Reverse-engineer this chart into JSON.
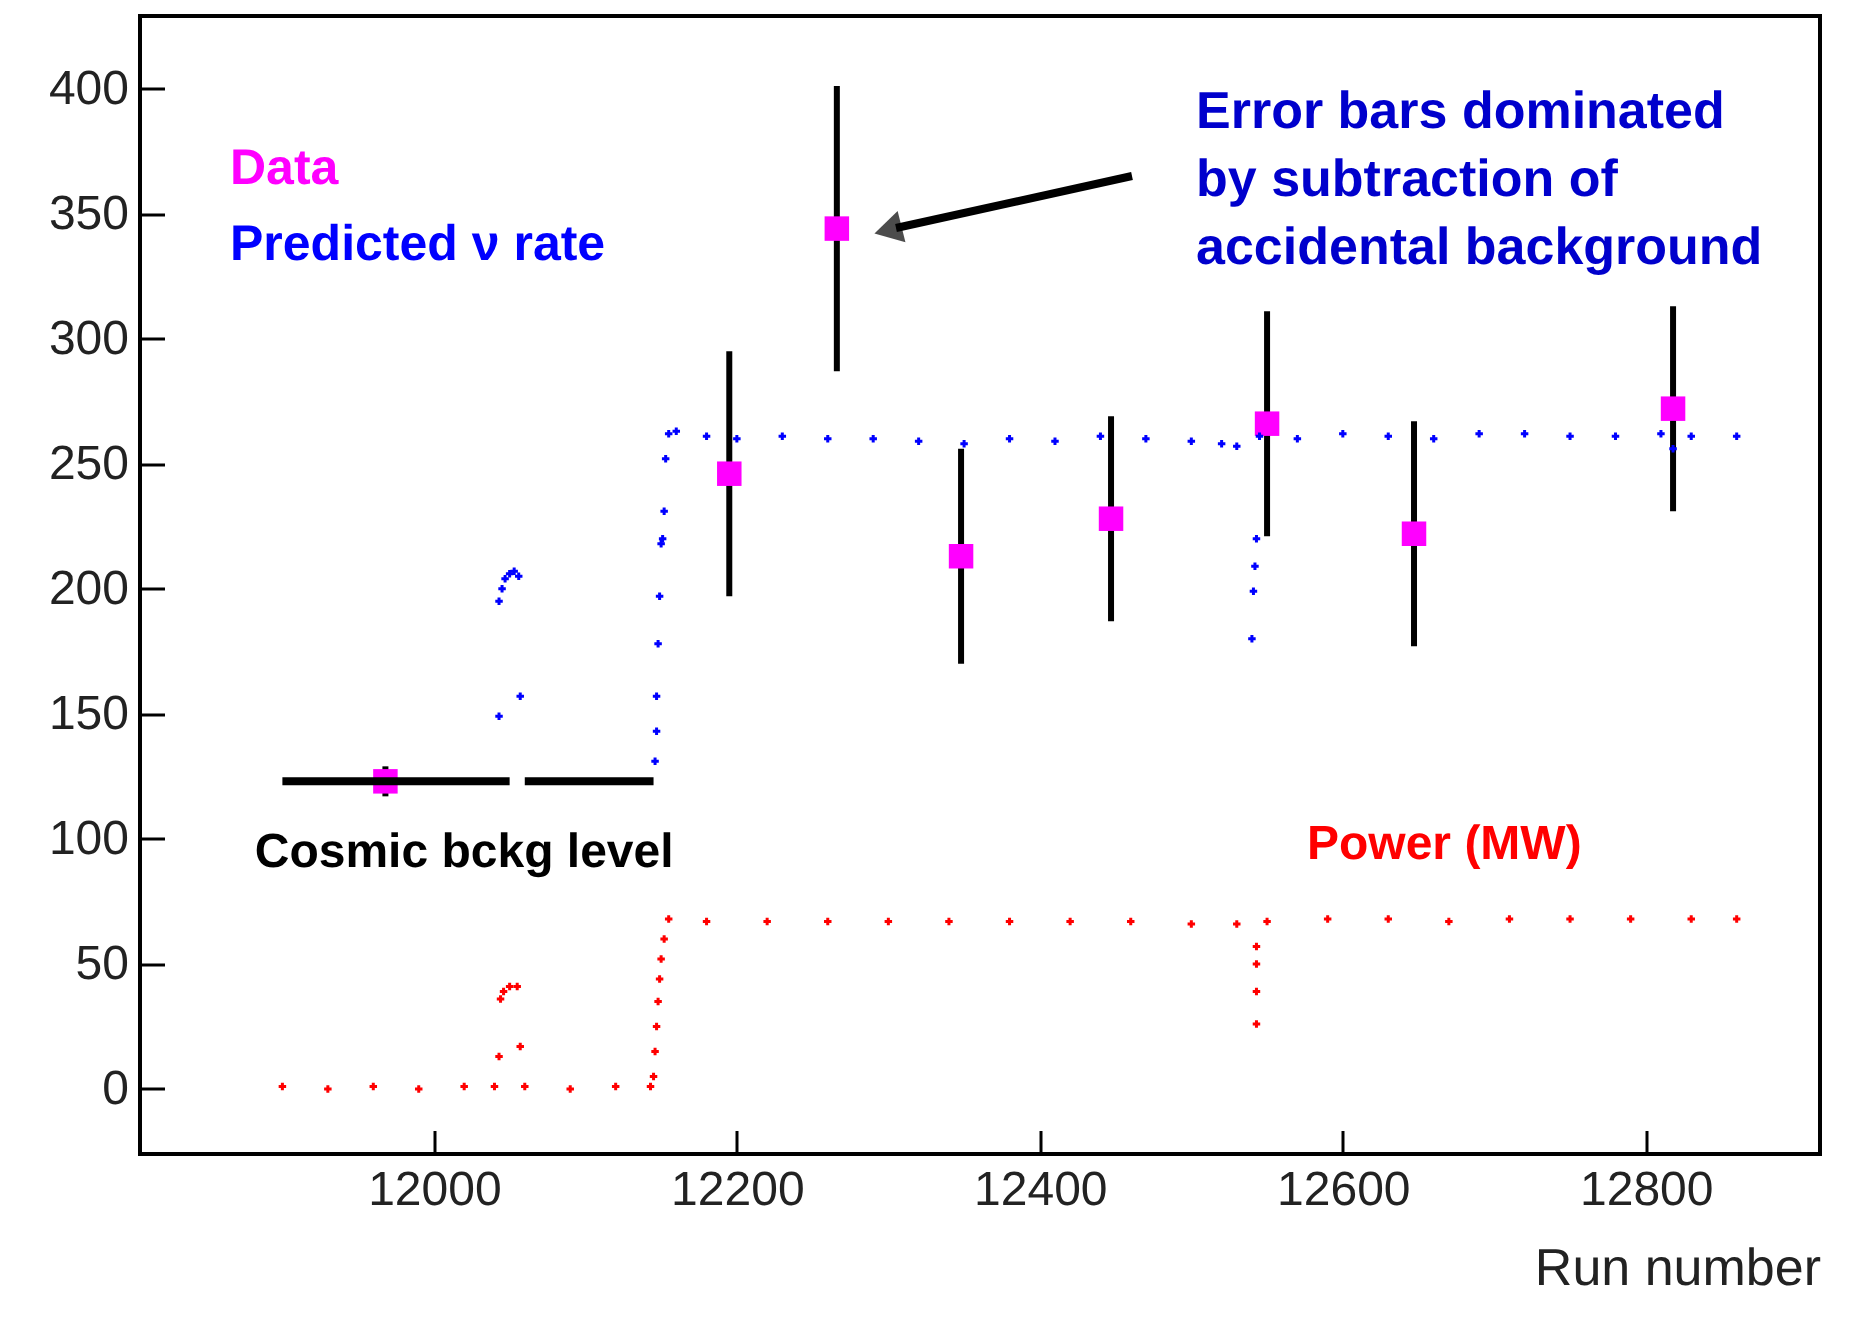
{
  "chart_data": {
    "type": "scatter",
    "xlabel": "Run number",
    "legend": "top left",
    "grid": false,
    "xlim": [
      11806,
      12915
    ],
    "ylim": [
      -26,
      429
    ],
    "xticks": [
      12000,
      12200,
      12400,
      12600,
      12800
    ],
    "yticks": [
      0,
      50,
      100,
      150,
      200,
      250,
      300,
      350,
      400
    ],
    "series": [
      {
        "name": "Data",
        "marker": "square",
        "color": "#ff00ff",
        "x": [
          11968,
          12195,
          12266,
          12348,
          12447,
          12550,
          12647,
          12818
        ],
        "values": [
          123,
          246,
          344,
          213,
          228,
          266,
          222,
          272
        ],
        "errors": [
          6,
          49,
          57,
          43,
          41,
          45,
          45,
          41
        ]
      },
      {
        "name": "Predicted ν rate",
        "marker": "cross",
        "color": "#0000ff",
        "x": [
          12043,
          12043,
          12045,
          12047,
          12050,
          12053,
          12056,
          12057,
          12146,
          12147,
          12147,
          12148,
          12149,
          12150,
          12151,
          12152,
          12153,
          12155,
          12160,
          12180,
          12200,
          12230,
          12260,
          12290,
          12320,
          12350,
          12380,
          12410,
          12440,
          12470,
          12500,
          12520,
          12530,
          12540,
          12541,
          12542,
          12543,
          12545,
          12570,
          12600,
          12630,
          12660,
          12690,
          12720,
          12750,
          12780,
          12810,
          12818,
          12830,
          12860
        ],
        "values": [
          149,
          195,
          200,
          204,
          206,
          207,
          205,
          157,
          131,
          143,
          157,
          178,
          197,
          218,
          220,
          231,
          252,
          262,
          263,
          261,
          260,
          261,
          260,
          260,
          259,
          258,
          260,
          259,
          261,
          260,
          259,
          258,
          257,
          180,
          199,
          209,
          220,
          261,
          260,
          262,
          261,
          260,
          262,
          262,
          261,
          261,
          262,
          256,
          261,
          261
        ]
      },
      {
        "marker": "cross",
        "color": "#ff0000",
        "x": [
          11900,
          11930,
          11960,
          11990,
          12020,
          12040,
          12043,
          12044,
          12046,
          12050,
          12055,
          12057,
          12060,
          12090,
          12120,
          12143,
          12145,
          12146,
          12147,
          12148,
          12149,
          12150,
          12152,
          12155,
          12180,
          12220,
          12260,
          12300,
          12340,
          12380,
          12420,
          12460,
          12500,
          12530,
          12543,
          12543,
          12543,
          12543,
          12550,
          12590,
          12630,
          12670,
          12710,
          12750,
          12790,
          12830,
          12860
        ],
        "values": [
          1,
          0,
          1,
          0,
          1,
          1,
          13,
          36,
          39,
          41,
          41,
          17,
          1,
          0,
          1,
          1,
          5,
          15,
          25,
          35,
          44,
          52,
          60,
          68,
          67,
          67,
          67,
          67,
          67,
          67,
          67,
          67,
          66,
          66,
          57,
          50,
          39,
          26,
          67,
          68,
          68,
          67,
          68,
          68,
          68,
          68,
          68
        ]
      },
      {
        "type": "line",
        "line_style": "solid",
        "color": "#000000",
        "x": [
          11900,
          12050,
          12055,
          12060,
          12145
        ],
        "values": [
          123,
          123,
          null,
          123,
          123
        ]
      }
    ],
    "annotations": [
      "Error bars dominated\nby subtraction of\naccidental background",
      {
        "text": "Cosmic bckg level",
        "x": 12020,
        "y": 123
      },
      {
        "text": "Power (MW)",
        "x": 12667,
        "y": 67
      }
    ]
  }
}
